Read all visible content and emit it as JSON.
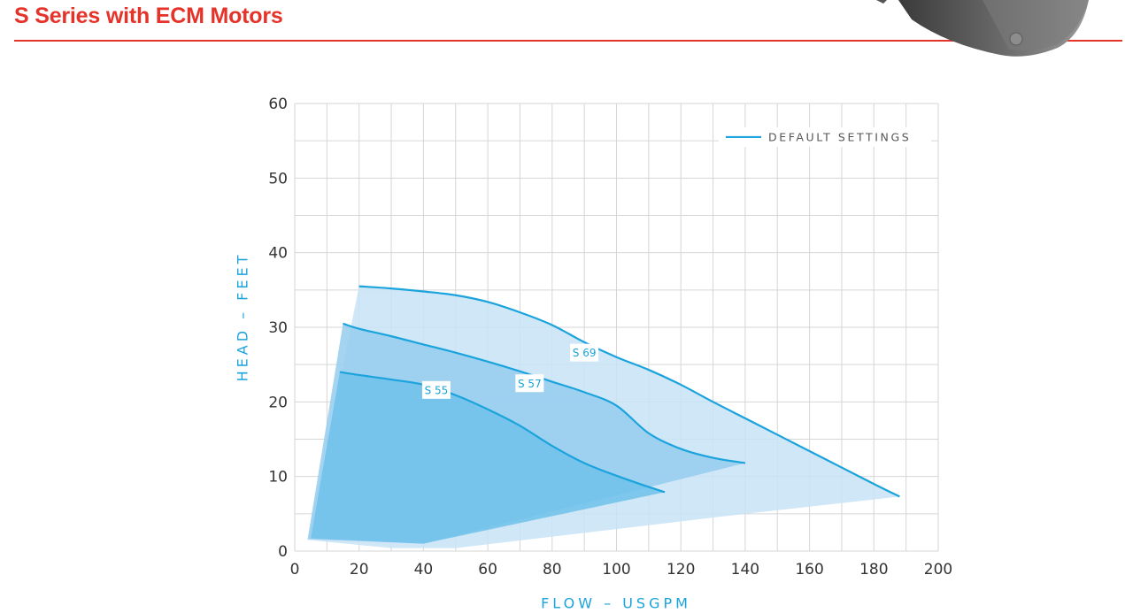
{
  "page": {
    "title": "S Series with ECM Motors",
    "accent_color": "#e5332a",
    "product_image_icon": "pump-motor-photo"
  },
  "chart_data": {
    "type": "line",
    "title": "",
    "xlabel": "FLOW – USGPM",
    "ylabel": "HEAD – FEET",
    "xlim": [
      0,
      200
    ],
    "ylim": [
      0,
      60
    ],
    "x_ticks": [
      0,
      20,
      40,
      60,
      80,
      100,
      120,
      140,
      160,
      180,
      200
    ],
    "y_ticks": [
      0,
      10,
      20,
      30,
      40,
      50,
      60
    ],
    "grid": true,
    "legend": {
      "placement": "top-right",
      "entries": [
        "DEFAULT SETTINGS"
      ]
    },
    "line_color": "#1aa3dc",
    "series": [
      {
        "name": "S 69",
        "fill_color": "#c7e3f6",
        "x": [
          20,
          30,
          40,
          50,
          60,
          70,
          80,
          90,
          100,
          110,
          120,
          130,
          140,
          150,
          160,
          170,
          180,
          188
        ],
        "y": [
          35.5,
          35.2,
          34.8,
          34.3,
          33.4,
          32.0,
          30.3,
          28.0,
          26.0,
          24.3,
          22.3,
          20.0,
          17.8,
          15.6,
          13.4,
          11.2,
          9.0,
          7.3
        ],
        "region_lower": [
          [
            188,
            7.3
          ],
          [
            140,
            5.0
          ],
          [
            50,
            0.4
          ],
          [
            30,
            0.4
          ],
          [
            4,
            1.5
          ]
        ]
      },
      {
        "name": "S 57",
        "fill_color": "#95cdef",
        "x": [
          15,
          20,
          30,
          40,
          50,
          60,
          70,
          80,
          90,
          100,
          110,
          120,
          130,
          140
        ],
        "y": [
          30.5,
          29.8,
          28.8,
          27.7,
          26.6,
          25.4,
          24.1,
          22.7,
          21.3,
          19.5,
          15.8,
          13.7,
          12.5,
          11.8
        ],
        "region_lower": [
          [
            140,
            11.8
          ],
          [
            40,
            1.0
          ],
          [
            4,
            1.6
          ]
        ]
      },
      {
        "name": "S 55",
        "fill_color": "#6ec1ea",
        "x": [
          14,
          20,
          30,
          40,
          50,
          60,
          70,
          80,
          90,
          100,
          110,
          115
        ],
        "y": [
          24.0,
          23.6,
          23.0,
          22.3,
          20.9,
          19.0,
          16.8,
          14.1,
          11.8,
          10.1,
          8.6,
          7.9
        ],
        "region_lower": [
          [
            115,
            7.9
          ],
          [
            40,
            1.0
          ],
          [
            5,
            1.7
          ]
        ]
      }
    ]
  }
}
